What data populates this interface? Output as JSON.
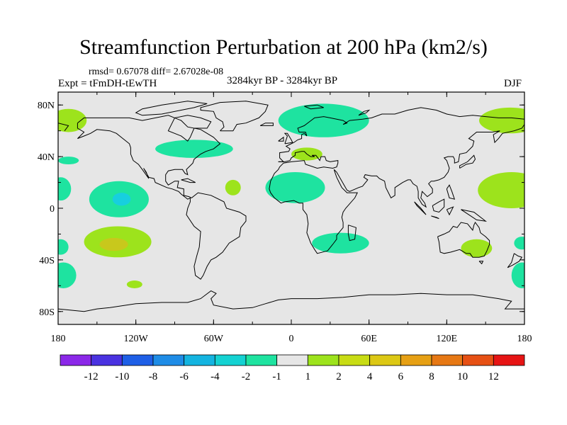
{
  "title": "Streamfunction Perturbation at 200 hPa (km2/s)",
  "stats": "rmsd= 0.67078 diff= 2.67028e-08",
  "experiment": "Expt = tFmDH-tEwTH",
  "period": "3284kyr BP - 3284kyr BP",
  "season": "DJF",
  "map": {
    "lon_range": [
      -180,
      180
    ],
    "lat_range": [
      -90,
      90
    ],
    "lat_ticks": [
      {
        "value": 80,
        "label": "80N"
      },
      {
        "value": 40,
        "label": "40N"
      },
      {
        "value": 0,
        "label": "0"
      },
      {
        "value": -40,
        "label": "40S"
      },
      {
        "value": -80,
        "label": "80S"
      }
    ],
    "lon_ticks": [
      {
        "value": -180,
        "label": "180"
      },
      {
        "value": -120,
        "label": "120W"
      },
      {
        "value": -60,
        "label": "60W"
      },
      {
        "value": 0,
        "label": "0"
      },
      {
        "value": 60,
        "label": "60E"
      },
      {
        "value": 120,
        "label": "120E"
      },
      {
        "value": 180,
        "label": "180"
      }
    ],
    "background_color": "#e6e6e6",
    "anomalies": [
      {
        "lon": -172,
        "lat": 68,
        "rlon": 14,
        "rlat": 9,
        "color": "#9de31c"
      },
      {
        "lon": -172,
        "lat": 37,
        "rlon": 8,
        "rlat": 3,
        "color": "#1ee3a0"
      },
      {
        "lon": -178,
        "lat": 15,
        "rlon": 8,
        "rlat": 9,
        "color": "#1ee3a0"
      },
      {
        "lon": -133,
        "lat": 7,
        "rlon": 23,
        "rlat": 14,
        "color": "#1ee3a0"
      },
      {
        "lon": -131,
        "lat": 7,
        "rlon": 7,
        "rlat": 5,
        "color": "#17cfdf"
      },
      {
        "lon": -134,
        "lat": -26,
        "rlon": 26,
        "rlat": 12,
        "color": "#9de31c"
      },
      {
        "lon": -137,
        "lat": -28,
        "rlon": 11,
        "rlat": 5,
        "color": "#c8c81c"
      },
      {
        "lon": -178,
        "lat": -30,
        "rlon": 6,
        "rlat": 6,
        "color": "#1ee3a0"
      },
      {
        "lon": -176,
        "lat": -52,
        "rlon": 10,
        "rlat": 10,
        "color": "#1ee3a0"
      },
      {
        "lon": -121,
        "lat": -59,
        "rlon": 6,
        "rlat": 3,
        "color": "#9de31c"
      },
      {
        "lon": -75,
        "lat": 46,
        "rlon": 30,
        "rlat": 7,
        "color": "#1ee3a0"
      },
      {
        "lon": -45,
        "lat": 16,
        "rlon": 6,
        "rlat": 6,
        "color": "#9de31c"
      },
      {
        "lon": 3,
        "lat": 16,
        "rlon": 23,
        "rlat": 12,
        "color": "#1ee3a0"
      },
      {
        "lon": 25,
        "lat": 68,
        "rlon": 35,
        "rlat": 13,
        "color": "#1ee3a0"
      },
      {
        "lon": 12,
        "lat": 42,
        "rlon": 12,
        "rlat": 5,
        "color": "#9de31c"
      },
      {
        "lon": 38,
        "lat": -27,
        "rlon": 22,
        "rlat": 8,
        "color": "#1ee3a0"
      },
      {
        "lon": 169,
        "lat": 68,
        "rlon": 24,
        "rlat": 10,
        "color": "#9de31c"
      },
      {
        "lon": 170,
        "lat": 14,
        "rlon": 26,
        "rlat": 14,
        "color": "#9de31c"
      },
      {
        "lon": 143,
        "lat": -31,
        "rlon": 12,
        "rlat": 7,
        "color": "#9de31c"
      },
      {
        "lon": 178,
        "lat": -27,
        "rlon": 6,
        "rlat": 5,
        "color": "#1ee3a0"
      },
      {
        "lon": 178,
        "lat": -52,
        "rlon": 8,
        "rlat": 10,
        "color": "#1ee3a0"
      }
    ]
  },
  "colorbar": {
    "colors": [
      "#8b28e8",
      "#4a32e0",
      "#1e5fe6",
      "#1e8ce6",
      "#14b4e0",
      "#14d2d2",
      "#1ee3a0",
      "#e6e6e6",
      "#9de31c",
      "#c8dc14",
      "#dcc814",
      "#e6a014",
      "#e67814",
      "#e65014",
      "#e61414"
    ],
    "labels": [
      "-12",
      "-10",
      "-8",
      "-6",
      "-4",
      "-2",
      "-1",
      "1",
      "2",
      "4",
      "6",
      "8",
      "10",
      "12"
    ]
  }
}
